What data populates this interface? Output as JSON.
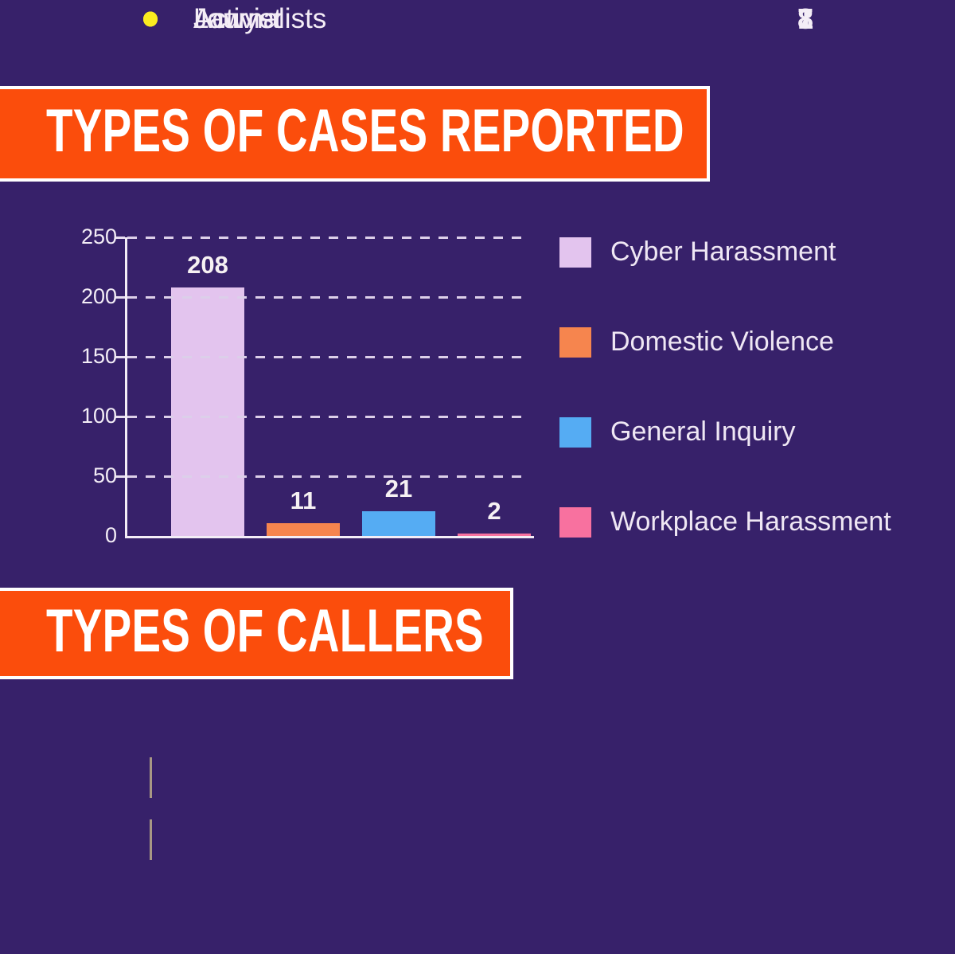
{
  "colors": {
    "background": "#37216A",
    "banner_orange": "#FB4D0C",
    "banner_border": "#FFFFFF",
    "title_text": "#FFFFFF",
    "body_text": "#EFE7F4",
    "axis_line": "#F3EDF6",
    "gridline": "#DCCFE9",
    "dot_yellow": "#FBEC1F",
    "connector_line": "#A89884"
  },
  "chart_data": [
    {
      "type": "bar",
      "title": "TYPES OF CASES REPORTED",
      "categories": [
        "Cyber Harassment",
        "Domestic Violence",
        "General Inquiry",
        "Workplace Harassment"
      ],
      "values": [
        208,
        11,
        21,
        2
      ],
      "colors": [
        "#E3C4EE",
        "#F6854E",
        "#55ACF3",
        "#F8719F"
      ],
      "xlabel": "",
      "ylabel": "",
      "ylim": [
        0,
        250
      ],
      "yticks": [
        0,
        50,
        100,
        150,
        200,
        250
      ],
      "grid": "horizontal-dashed",
      "legend_position": "right"
    },
    {
      "type": "table",
      "title": "TYPES OF CALLERS",
      "categories": [
        "Activist",
        "Journalists",
        "Lawyer"
      ],
      "values": [
        8,
        7,
        1
      ]
    }
  ]
}
